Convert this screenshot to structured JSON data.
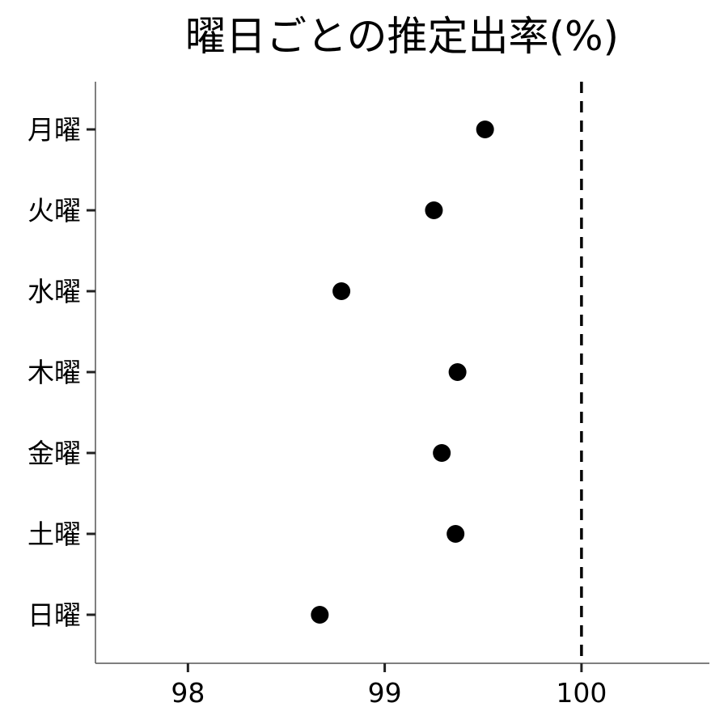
{
  "chart_data": {
    "type": "scatter",
    "title": "曜日ごとの推定出率(%)",
    "xlabel": "",
    "ylabel": "",
    "categories": [
      "月曜",
      "火曜",
      "水曜",
      "木曜",
      "金曜",
      "土曜",
      "日曜"
    ],
    "values": [
      99.51,
      99.25,
      98.78,
      99.37,
      99.29,
      99.36,
      98.67
    ],
    "xlim": [
      97.53,
      100.65
    ],
    "xticks": [
      98,
      99,
      100
    ],
    "xtick_labels": [
      "98",
      "99",
      "100"
    ],
    "reference_line": {
      "x": 100,
      "style": "dashed"
    },
    "grid": false,
    "colors": {
      "point": "#000000",
      "reference_line": "#000000",
      "axis": "#555555"
    }
  }
}
